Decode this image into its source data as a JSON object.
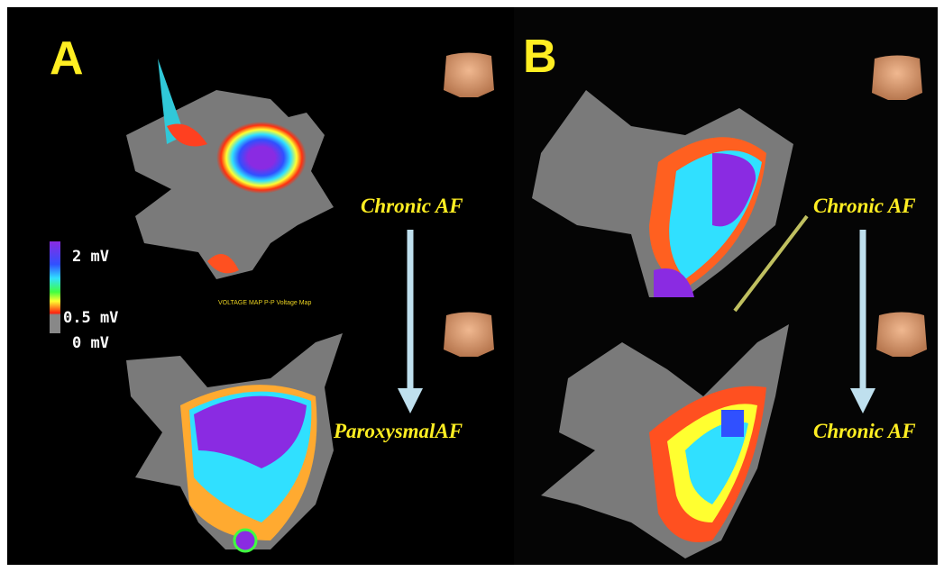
{
  "panels": [
    {
      "label": "A",
      "legend": [
        "2 mV",
        "0.5 mV",
        "0 mV"
      ],
      "map_caption": "VOLTAGE MAP P-P Voltage Map",
      "top_label": "Chronic AF",
      "bottom_label": "ParoxysmalAF"
    },
    {
      "label": "B",
      "top_label": "Chronic AF",
      "bottom_label": "Chronic AF"
    }
  ]
}
